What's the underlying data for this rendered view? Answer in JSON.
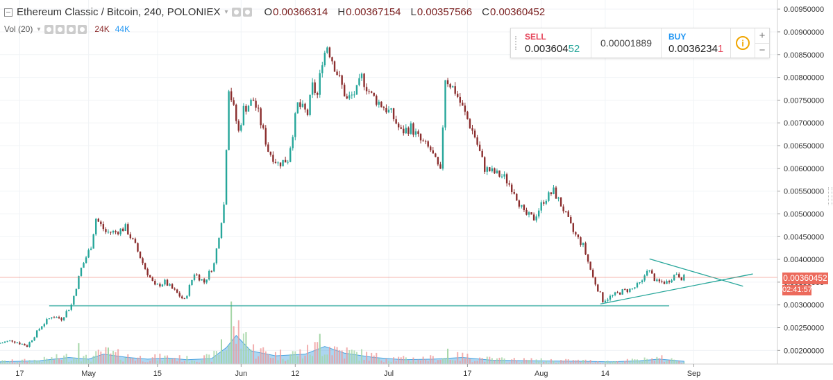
{
  "legend": {
    "symbol": "Ethereum Classic / Bitcoin, 240, POLONIEX",
    "open_label": "O",
    "open": "0.00366314",
    "high_label": "H",
    "high": "0.00367154",
    "low_label": "L",
    "low": "0.00357566",
    "close_label": "C",
    "close": "0.00360452"
  },
  "volume_legend": {
    "label": "Vol (20)",
    "value_a": "24K",
    "value_b": "44K"
  },
  "trade_panel": {
    "sell_label": "SELL",
    "sell_price_main": "0.003604",
    "sell_price_hi": "52",
    "spread": "0.00001889",
    "buy_label": "BUY",
    "buy_price_main": "0.0036234",
    "buy_price_hi": "1",
    "info_icon": "i",
    "plus": "+",
    "minus": "−"
  },
  "price_tag": "0.00360452",
  "countdown_tag": "02:41:57",
  "colors": {
    "up": "#26a69a",
    "down": "#8b2e2e",
    "trendline": "#26a69a",
    "volume_fill": "#4aa3df",
    "price_line": "#ec6a5c"
  },
  "chart_data": {
    "type": "candlestick",
    "title": "Ethereum Classic / Bitcoin, 240, POLONIEX",
    "ylim": [
      0.0017,
      0.0097
    ],
    "y_ticks": [
      "0.00200000",
      "0.00250000",
      "0.00300000",
      "0.00350000",
      "0.00400000",
      "0.00450000",
      "0.00500000",
      "0.00550000",
      "0.00600000",
      "0.00650000",
      "0.00700000",
      "0.00750000",
      "0.00800000",
      "0.00850000",
      "0.00900000",
      "0.00950000"
    ],
    "x_ticks": [
      "17",
      "May",
      "15",
      "Jun",
      "12",
      "Jul",
      "17",
      "Aug",
      "14",
      "Sep"
    ],
    "x_tick_days": [
      -14,
      0,
      14,
      31,
      42,
      61,
      77,
      92,
      105,
      123
    ],
    "x_range_days": [
      -18,
      140
    ],
    "grid": true,
    "price_path": [
      [
        -18,
        0.00215
      ],
      [
        -15,
        0.00222
      ],
      [
        -12,
        0.0021
      ],
      [
        -9,
        0.00255
      ],
      [
        -7,
        0.00275
      ],
      [
        -5,
        0.0027
      ],
      [
        -3,
        0.003
      ],
      [
        -1,
        0.0038
      ],
      [
        1,
        0.0043
      ],
      [
        2,
        0.0049
      ],
      [
        4,
        0.0046
      ],
      [
        6,
        0.0046
      ],
      [
        8,
        0.0047
      ],
      [
        10,
        0.0043
      ],
      [
        12,
        0.0038
      ],
      [
        14,
        0.0034
      ],
      [
        16,
        0.0035
      ],
      [
        18,
        0.0033
      ],
      [
        20,
        0.0031
      ],
      [
        22,
        0.0037
      ],
      [
        24,
        0.0035
      ],
      [
        26,
        0.0039
      ],
      [
        28,
        0.0052
      ],
      [
        29,
        0.0078
      ],
      [
        31,
        0.0068
      ],
      [
        32,
        0.0073
      ],
      [
        34,
        0.0075
      ],
      [
        35,
        0.0072
      ],
      [
        37,
        0.0064
      ],
      [
        39,
        0.0061
      ],
      [
        41,
        0.0062
      ],
      [
        43,
        0.0074
      ],
      [
        45,
        0.0072
      ],
      [
        46,
        0.0078
      ],
      [
        47,
        0.0076
      ],
      [
        48,
        0.0084
      ],
      [
        49,
        0.0087
      ],
      [
        51,
        0.0081
      ],
      [
        53,
        0.0075
      ],
      [
        55,
        0.0077
      ],
      [
        56,
        0.008
      ],
      [
        58,
        0.0076
      ],
      [
        60,
        0.0074
      ],
      [
        62,
        0.0072
      ],
      [
        64,
        0.0068
      ],
      [
        66,
        0.0069
      ],
      [
        68,
        0.0066
      ],
      [
        70,
        0.0064
      ],
      [
        72,
        0.0059
      ],
      [
        73,
        0.008
      ],
      [
        75,
        0.0077
      ],
      [
        77,
        0.0072
      ],
      [
        79,
        0.0067
      ],
      [
        81,
        0.006
      ],
      [
        83,
        0.0059
      ],
      [
        85,
        0.0058
      ],
      [
        87,
        0.0055
      ],
      [
        89,
        0.005
      ],
      [
        91,
        0.0049
      ],
      [
        93,
        0.0053
      ],
      [
        95,
        0.0055
      ],
      [
        97,
        0.0051
      ],
      [
        99,
        0.0046
      ],
      [
        101,
        0.0043
      ],
      [
        103,
        0.0036
      ],
      [
        105,
        0.0031
      ],
      [
        107,
        0.0032
      ],
      [
        109,
        0.0033
      ],
      [
        111,
        0.00335
      ],
      [
        113,
        0.0035
      ],
      [
        114,
        0.0038
      ],
      [
        116,
        0.0035
      ],
      [
        118,
        0.0035
      ],
      [
        120,
        0.0037
      ],
      [
        121,
        0.0036
      ]
    ],
    "volume_ylim": [
      0,
      120000
    ],
    "volume_path": [
      [
        -18,
        4000
      ],
      [
        -10,
        6000
      ],
      [
        -4,
        12000
      ],
      [
        0,
        9000
      ],
      [
        3,
        18000
      ],
      [
        8,
        12000
      ],
      [
        12,
        9000
      ],
      [
        16,
        11000
      ],
      [
        20,
        8000
      ],
      [
        25,
        10000
      ],
      [
        28,
        30000
      ],
      [
        30,
        52000
      ],
      [
        33,
        24000
      ],
      [
        38,
        15000
      ],
      [
        44,
        18000
      ],
      [
        48,
        32000
      ],
      [
        52,
        20000
      ],
      [
        58,
        12000
      ],
      [
        64,
        8000
      ],
      [
        70,
        9000
      ],
      [
        76,
        12000
      ],
      [
        82,
        7000
      ],
      [
        90,
        6000
      ],
      [
        100,
        5000
      ],
      [
        106,
        4000
      ],
      [
        112,
        6000
      ],
      [
        116,
        9000
      ],
      [
        121,
        5000
      ]
    ],
    "volume_spikes": [
      [
        29,
        114000
      ],
      [
        32,
        58000
      ],
      [
        47,
        55000
      ],
      [
        27,
        45000
      ],
      [
        -2,
        38000
      ],
      [
        73,
        28000
      ],
      [
        4,
        30000
      ]
    ],
    "annotations": {
      "support_line": [
        [
          -8,
          0.00298
        ],
        [
          118,
          0.00298
        ]
      ],
      "triangle_upper": [
        [
          114,
          0.00401
        ],
        [
          133,
          0.00341
        ]
      ],
      "triangle_lower": [
        [
          104,
          0.00302
        ],
        [
          135,
          0.00368
        ]
      ],
      "last_price": 0.00360452
    }
  }
}
